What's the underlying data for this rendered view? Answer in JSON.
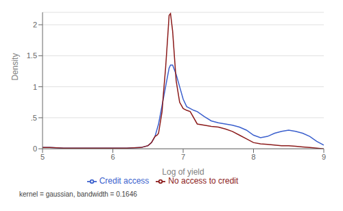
{
  "chart_data": {
    "type": "line",
    "xlabel": "Log of yield",
    "ylabel": "Density",
    "annotations": [
      "kernel = gaussian, bandwidth = 0.1646"
    ],
    "xlim": [
      5,
      9
    ],
    "ylim": [
      0,
      2.2
    ],
    "xticks": [
      5,
      6,
      7,
      8,
      9
    ],
    "yticks": [
      0,
      {
        "value": 0.5,
        "label": ".5"
      },
      1,
      1.5,
      2
    ],
    "grid": "y",
    "legend": "bottom",
    "series": [
      {
        "name": "Credit access",
        "color": "#3a5fcd",
        "x": [
          5.0,
          5.1,
          5.2,
          5.3,
          5.4,
          5.5,
          5.6,
          5.7,
          5.8,
          5.9,
          6.0,
          6.1,
          6.2,
          6.3,
          6.4,
          6.5,
          6.55,
          6.6,
          6.65,
          6.7,
          6.75,
          6.8,
          6.82,
          6.85,
          6.9,
          6.95,
          7.0,
          7.05,
          7.1,
          7.15,
          7.2,
          7.3,
          7.4,
          7.5,
          7.6,
          7.7,
          7.8,
          7.9,
          8.0,
          8.1,
          8.2,
          8.3,
          8.4,
          8.5,
          8.6,
          8.7,
          8.8,
          8.9,
          9.0
        ],
        "values": [
          0.02,
          0.02,
          0.015,
          0.01,
          0.01,
          0.01,
          0.01,
          0.01,
          0.01,
          0.01,
          0.01,
          0.01,
          0.01,
          0.015,
          0.02,
          0.05,
          0.1,
          0.2,
          0.4,
          0.7,
          1.0,
          1.3,
          1.35,
          1.35,
          1.2,
          1.0,
          0.8,
          0.68,
          0.65,
          0.62,
          0.6,
          0.52,
          0.45,
          0.42,
          0.4,
          0.38,
          0.35,
          0.3,
          0.22,
          0.18,
          0.2,
          0.25,
          0.28,
          0.3,
          0.28,
          0.25,
          0.2,
          0.12,
          0.06
        ]
      },
      {
        "name": "No access to credit",
        "color": "#8b1a1a",
        "x": [
          5.0,
          5.1,
          5.2,
          5.3,
          5.4,
          5.5,
          5.6,
          5.7,
          5.8,
          5.9,
          6.0,
          6.1,
          6.2,
          6.3,
          6.4,
          6.5,
          6.55,
          6.6,
          6.63,
          6.65,
          6.7,
          6.72,
          6.75,
          6.78,
          6.8,
          6.82,
          6.85,
          6.9,
          6.95,
          7.0,
          7.05,
          7.1,
          7.2,
          7.3,
          7.4,
          7.5,
          7.6,
          7.7,
          7.8,
          7.9,
          8.0,
          8.1,
          8.2,
          8.3,
          8.4,
          8.5,
          8.6,
          8.7,
          8.8,
          8.9,
          9.0
        ],
        "values": [
          0.02,
          0.02,
          0.015,
          0.01,
          0.01,
          0.01,
          0.01,
          0.01,
          0.01,
          0.01,
          0.01,
          0.01,
          0.01,
          0.015,
          0.02,
          0.05,
          0.1,
          0.2,
          0.22,
          0.25,
          0.6,
          0.9,
          1.3,
          1.8,
          2.15,
          2.18,
          1.9,
          1.1,
          0.75,
          0.65,
          0.62,
          0.6,
          0.4,
          0.38,
          0.36,
          0.35,
          0.32,
          0.28,
          0.22,
          0.16,
          0.1,
          0.08,
          0.07,
          0.06,
          0.05,
          0.05,
          0.04,
          0.03,
          0.02,
          0.01,
          0.0
        ]
      }
    ]
  }
}
